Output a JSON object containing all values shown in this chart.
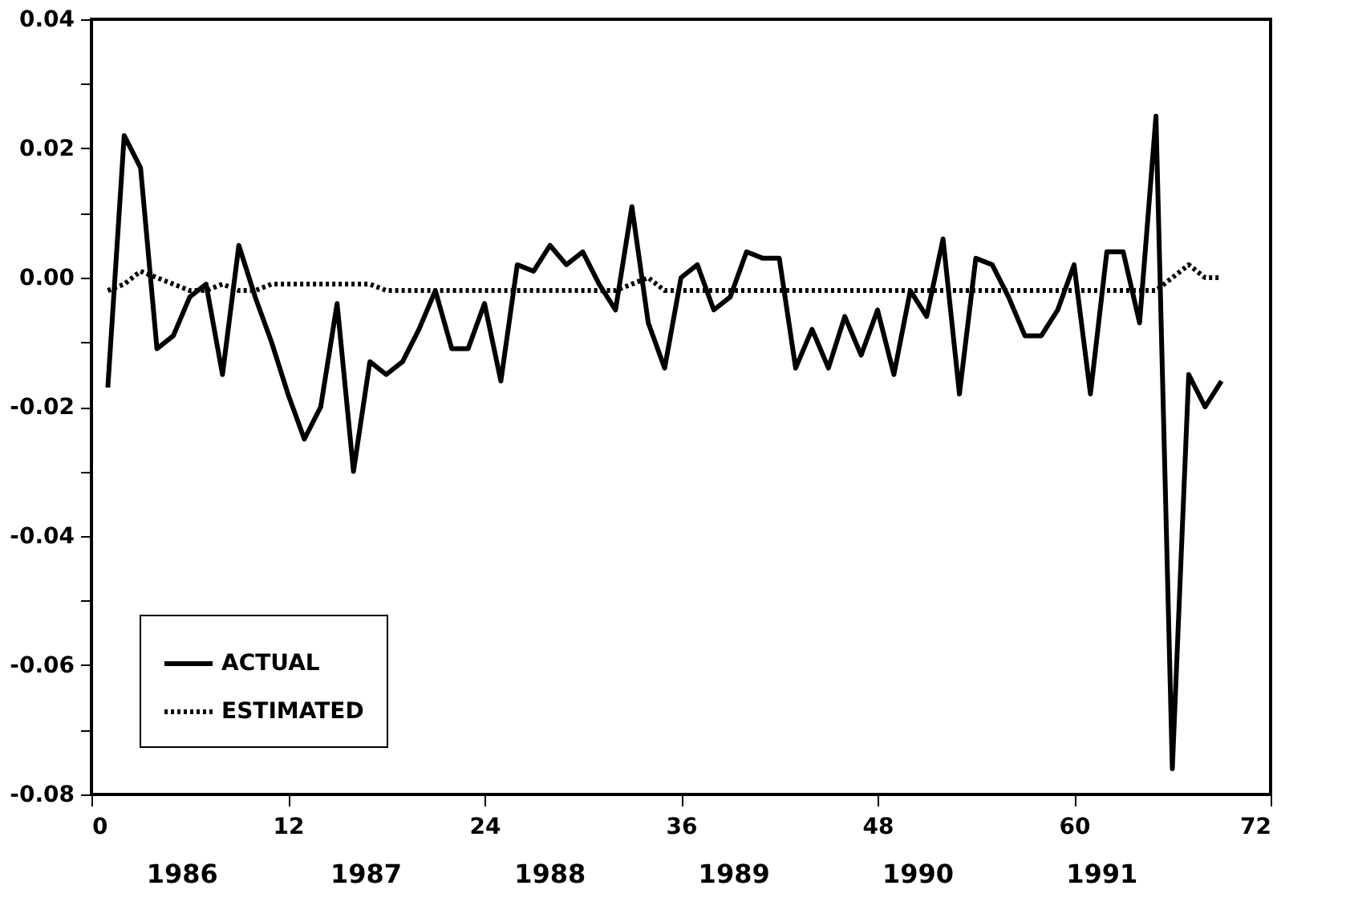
{
  "chart_data": {
    "type": "line",
    "x": [
      1,
      2,
      3,
      4,
      5,
      6,
      7,
      8,
      9,
      10,
      11,
      12,
      13,
      14,
      15,
      16,
      17,
      18,
      19,
      20,
      21,
      22,
      23,
      24,
      25,
      26,
      27,
      28,
      29,
      30,
      31,
      32,
      33,
      34,
      35,
      36,
      37,
      38,
      39,
      40,
      41,
      42,
      43,
      44,
      45,
      46,
      47,
      48,
      49,
      50,
      51,
      52,
      53,
      54,
      55,
      56,
      57,
      58,
      59,
      60,
      61,
      62,
      63,
      64,
      65,
      66,
      67,
      68,
      69
    ],
    "series": [
      {
        "name": "ACTUAL",
        "color": "#000000",
        "line_style": "solid",
        "values": [
          -0.017,
          0.022,
          0.017,
          -0.011,
          -0.009,
          -0.003,
          -0.001,
          -0.015,
          0.005,
          -0.003,
          -0.01,
          -0.018,
          -0.025,
          -0.02,
          -0.004,
          -0.03,
          -0.013,
          -0.015,
          -0.013,
          -0.008,
          -0.002,
          -0.011,
          -0.011,
          -0.004,
          -0.016,
          0.002,
          0.001,
          0.005,
          0.002,
          0.004,
          -0.001,
          -0.005,
          0.011,
          -0.007,
          -0.014,
          0.0,
          0.002,
          -0.005,
          -0.003,
          0.004,
          0.003,
          0.003,
          -0.014,
          -0.008,
          -0.014,
          -0.006,
          -0.012,
          -0.005,
          -0.015,
          -0.002,
          -0.006,
          0.006,
          -0.018,
          0.003,
          0.002,
          -0.003,
          -0.009,
          -0.009,
          -0.005,
          0.002,
          -0.018,
          0.004,
          0.004,
          -0.007,
          0.025,
          -0.076,
          -0.015,
          -0.02,
          -0.016
        ]
      },
      {
        "name": "ESTIMATED",
        "color": "#000000",
        "line_style": "dotted",
        "values": [
          -0.002,
          -0.001,
          0.001,
          0.0,
          -0.001,
          -0.002,
          -0.002,
          -0.001,
          -0.002,
          -0.002,
          -0.001,
          -0.001,
          -0.001,
          -0.001,
          -0.001,
          -0.001,
          -0.001,
          -0.002,
          -0.002,
          -0.002,
          -0.002,
          -0.002,
          -0.002,
          -0.002,
          -0.002,
          -0.002,
          -0.002,
          -0.002,
          -0.002,
          -0.002,
          -0.002,
          -0.002,
          -0.001,
          0.0,
          -0.002,
          -0.002,
          -0.002,
          -0.002,
          -0.002,
          -0.002,
          -0.002,
          -0.002,
          -0.002,
          -0.002,
          -0.002,
          -0.002,
          -0.002,
          -0.002,
          -0.002,
          -0.002,
          -0.002,
          -0.002,
          -0.002,
          -0.002,
          -0.002,
          -0.002,
          -0.002,
          -0.002,
          -0.002,
          -0.002,
          -0.002,
          -0.002,
          -0.002,
          -0.002,
          -0.002,
          0.0,
          0.002,
          0.0,
          0.0
        ]
      }
    ],
    "xlim": [
      0,
      72
    ],
    "xticks": [
      0,
      12,
      24,
      36,
      48,
      60,
      72
    ],
    "ylim": [
      -0.08,
      0.04
    ],
    "yticks": [
      {
        "value": -0.08,
        "label": "-0.08"
      },
      {
        "value": -0.07,
        "label": null
      },
      {
        "value": -0.06,
        "label": "-0.06"
      },
      {
        "value": -0.05,
        "label": null
      },
      {
        "value": -0.04,
        "label": "-0.04"
      },
      {
        "value": -0.03,
        "label": null
      },
      {
        "value": -0.02,
        "label": "-0.02"
      },
      {
        "value": -0.01,
        "label": null
      },
      {
        "value": 0.0,
        "label": "0.00"
      },
      {
        "value": 0.01,
        "label": null
      },
      {
        "value": 0.02,
        "label": "0.02"
      },
      {
        "value": 0.03,
        "label": null
      },
      {
        "value": 0.04,
        "label": "0.04"
      }
    ],
    "annotations": [
      "1986",
      "1987",
      "1988",
      "1989",
      "1990",
      "1991"
    ],
    "legend": "bottom left",
    "grid": false,
    "marker": "none"
  }
}
